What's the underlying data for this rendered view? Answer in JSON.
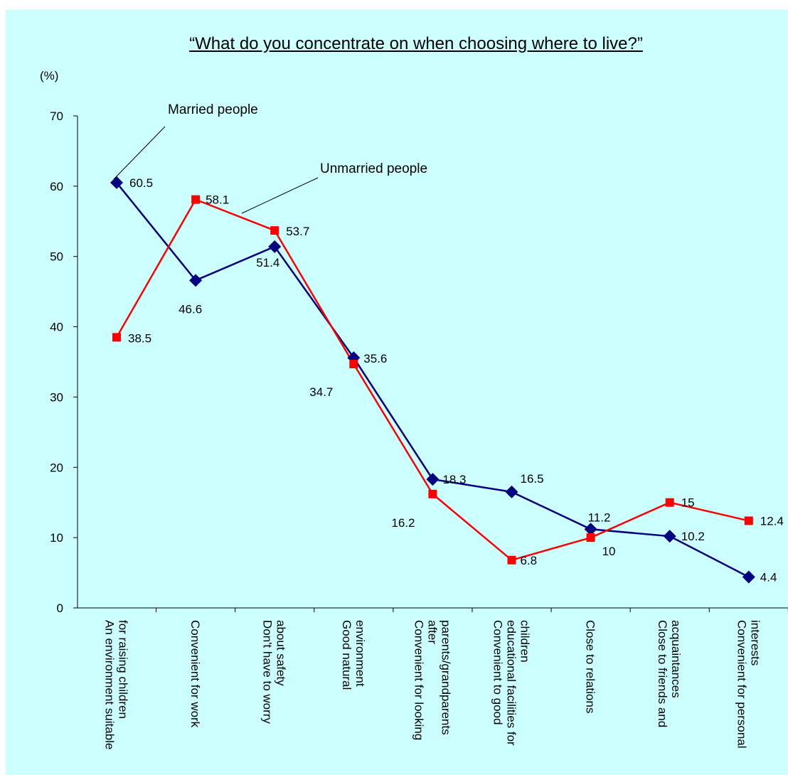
{
  "chart_data": {
    "type": "line",
    "title": "“What do you concentrate on when choosing where to live?”",
    "ylabel": "(%)",
    "ylim": [
      0,
      70
    ],
    "yticks": [
      0,
      10,
      20,
      30,
      40,
      50,
      60,
      70
    ],
    "categories": [
      [
        "An environment suitable",
        "for raising children"
      ],
      [
        "Convenient for work"
      ],
      [
        "Don't have to worry",
        "about safety"
      ],
      [
        "Good natural",
        "environment"
      ],
      [
        "Convenient for looking",
        "after",
        "parents/grandparents"
      ],
      [
        "Convenient to good",
        "educational facilities for",
        "children"
      ],
      [
        "Close to relations"
      ],
      [
        "Close to friends and",
        "acquaintances"
      ],
      [
        "Convenient for personal",
        "interests"
      ]
    ],
    "series": [
      {
        "name": "Married people",
        "color": "#000080",
        "marker": "diamond",
        "values": [
          60.5,
          46.6,
          51.4,
          35.6,
          18.3,
          16.5,
          11.2,
          10.2,
          4.4
        ],
        "labels": [
          "60.5",
          "46.6",
          "51.4",
          "35.6",
          "18.3",
          "16.5",
          "11.2",
          "10.2",
          "4.4"
        ]
      },
      {
        "name": "Unmarried people",
        "color": "#ff0000",
        "marker": "square",
        "values": [
          38.5,
          58.1,
          53.7,
          34.7,
          16.2,
          6.8,
          10,
          15,
          12.4
        ],
        "labels": [
          "38.5",
          "58.1",
          "53.7",
          "34.7",
          "16.2",
          "6.8",
          "10",
          "15",
          "12.4"
        ]
      }
    ],
    "grid": false,
    "legend": "callout-labels"
  }
}
